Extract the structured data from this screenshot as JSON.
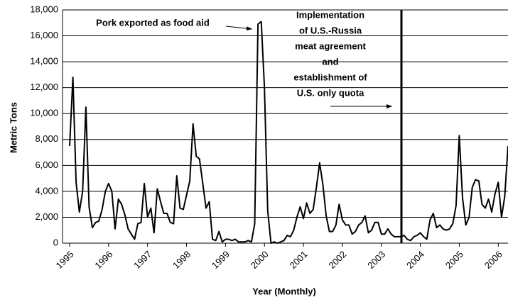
{
  "chart_data": {
    "type": "line",
    "xlabel": "Year (Monthly)",
    "ylabel": "Metric Tons",
    "categories": [
      "1995",
      null,
      null,
      null,
      null,
      null,
      null,
      null,
      null,
      null,
      null,
      null,
      "1996",
      null,
      null,
      null,
      null,
      null,
      null,
      null,
      null,
      null,
      null,
      null,
      "1997",
      null,
      null,
      null,
      null,
      null,
      null,
      null,
      null,
      null,
      null,
      null,
      "1998",
      null,
      null,
      null,
      null,
      null,
      null,
      null,
      null,
      null,
      null,
      null,
      "1999",
      null,
      null,
      null,
      null,
      null,
      null,
      null,
      null,
      null,
      null,
      null,
      "2000",
      null,
      null,
      null,
      null,
      null,
      null,
      null,
      null,
      null,
      null,
      null,
      "2001",
      null,
      null,
      null,
      null,
      null,
      null,
      null,
      null,
      null,
      null,
      null,
      "2002",
      null,
      null,
      null,
      null,
      null,
      null,
      null,
      null,
      null,
      null,
      null,
      "2003",
      null,
      null,
      null,
      null,
      null,
      null,
      null,
      null,
      null,
      null,
      null,
      "2004",
      null,
      null,
      null,
      null,
      null,
      null,
      null,
      null,
      null,
      null,
      null,
      "2005",
      null,
      null,
      null,
      null,
      null,
      null,
      null,
      null,
      null,
      null,
      null,
      "2006",
      null,
      null,
      null
    ],
    "values": [
      7500,
      12800,
      4700,
      2400,
      4000,
      10500,
      2800,
      1200,
      1600,
      1700,
      2600,
      4000,
      4600,
      4000,
      1100,
      3400,
      3000,
      2200,
      1100,
      700,
      300,
      1500,
      1600,
      4600,
      2000,
      2700,
      800,
      4200,
      3200,
      2300,
      2300,
      1600,
      1500,
      5200,
      2700,
      2600,
      3700,
      4800,
      9200,
      6700,
      6500,
      4600,
      2700,
      3200,
      300,
      200,
      900,
      100,
      300,
      300,
      200,
      300,
      100,
      100,
      100,
      200,
      100,
      1500,
      16900,
      17100,
      12000,
      2500,
      0,
      100,
      0,
      100,
      200,
      600,
      500,
      1000,
      2000,
      2800,
      1900,
      3100,
      2300,
      2600,
      4300,
      6200,
      4500,
      2100,
      900,
      900,
      1400,
      3000,
      1800,
      1400,
      1400,
      700,
      900,
      1400,
      1600,
      2100,
      800,
      1000,
      1600,
      1600,
      700,
      700,
      1100,
      700,
      500,
      500,
      500,
      600,
      300,
      200,
      500,
      600,
      800,
      500,
      300,
      1800,
      2300,
      1200,
      1400,
      1100,
      1000,
      1100,
      1500,
      2900,
      8300,
      3500,
      1400,
      2000,
      4300,
      4900,
      4800,
      3000,
      2700,
      3400,
      2400,
      3800,
      4700,
      2000,
      3600,
      7500
    ],
    "color": "#000000",
    "ylim": [
      0,
      18000
    ],
    "yticks": [
      0,
      {
        "value": 2000,
        "label": "2,000"
      },
      {
        "value": 4000,
        "label": "4,000"
      },
      {
        "value": 6000,
        "label": "6,000"
      },
      {
        "value": 8000,
        "label": "8,000"
      },
      {
        "value": 10000,
        "label": "10,000"
      },
      {
        "value": 12000,
        "label": "12,000"
      },
      {
        "value": 14000,
        "label": "14,000"
      },
      {
        "value": 16000,
        "label": "16,000"
      },
      {
        "value": 18000,
        "label": "18,000"
      }
    ],
    "grid": true,
    "annotations": [
      {
        "lines": [
          "Pork exported as food aid"
        ]
      },
      {
        "lines": [
          "Implementation",
          "of U.S.-Russia",
          "meat agreement",
          "and",
          "establishment of",
          "U.S. only quota"
        ]
      }
    ]
  }
}
